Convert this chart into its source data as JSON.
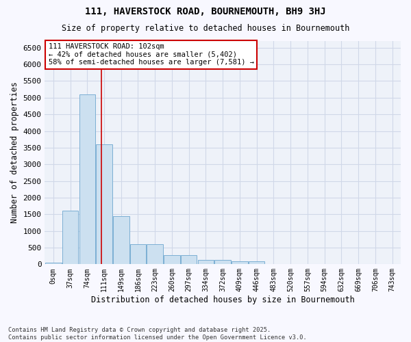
{
  "title_line1": "111, HAVERSTOCK ROAD, BOURNEMOUTH, BH9 3HJ",
  "title_line2": "Size of property relative to detached houses in Bournemouth",
  "xlabel": "Distribution of detached houses by size in Bournemouth",
  "ylabel": "Number of detached properties",
  "footnote": "Contains HM Land Registry data © Crown copyright and database right 2025.\nContains public sector information licensed under the Open Government Licence v3.0.",
  "bin_labels": [
    "0sqm",
    "37sqm",
    "74sqm",
    "111sqm",
    "149sqm",
    "186sqm",
    "223sqm",
    "260sqm",
    "297sqm",
    "334sqm",
    "372sqm",
    "409sqm",
    "446sqm",
    "483sqm",
    "520sqm",
    "557sqm",
    "594sqm",
    "632sqm",
    "669sqm",
    "706sqm",
    "743sqm"
  ],
  "bar_values": [
    50,
    1600,
    5100,
    3600,
    1450,
    600,
    600,
    280,
    280,
    120,
    120,
    90,
    80,
    0,
    0,
    0,
    0,
    0,
    0,
    0,
    0
  ],
  "bar_color": "#cce0f0",
  "bar_edge_color": "#7bafd4",
  "grid_color": "#d0d8e8",
  "background_color": "#eef2f9",
  "fig_background_color": "#f8f8ff",
  "vline_x": 2.85,
  "vline_color": "#cc0000",
  "annotation_text": "111 HAVERSTOCK ROAD: 102sqm\n← 42% of detached houses are smaller (5,402)\n58% of semi-detached houses are larger (7,581) →",
  "annotation_box_color": "#ffffff",
  "annotation_box_edge": "#cc0000",
  "ylim": [
    0,
    6700
  ],
  "yticks": [
    0,
    500,
    1000,
    1500,
    2000,
    2500,
    3000,
    3500,
    4000,
    4500,
    5000,
    5500,
    6000,
    6500
  ]
}
